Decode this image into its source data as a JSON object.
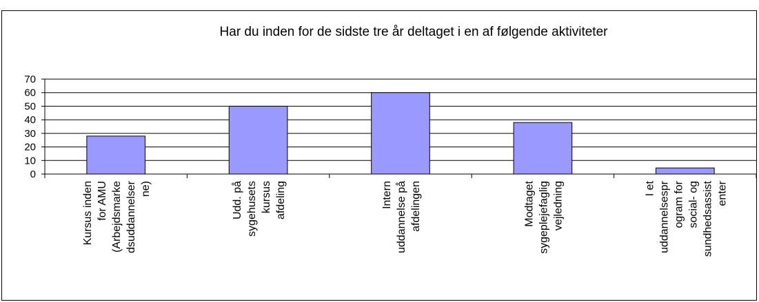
{
  "chart_data": {
    "type": "bar",
    "title": "Har du inden for de sidste tre år deltaget i en af følgende aktiviteter",
    "categories": [
      "Kursus inden\nfor AMU\n(Arbejdsmarke\ndsuddannelser\nne)",
      "Udd. på\nsygehusets\nkursus\nafdeling",
      "Intern\nuddannelse på\nafdelingen",
      "Modtaget\nsygeplejefaglig\nvejledning",
      "I et\nuddannelsespr\nogram for\nsocial- og\nsundhedsassist\nenter"
    ],
    "values": [
      28,
      50,
      60,
      38,
      4.5
    ],
    "color": "#9999ff",
    "ylim": [
      0,
      70
    ],
    "yticks": [
      0,
      10,
      20,
      30,
      40,
      50,
      60,
      70
    ],
    "grid": true
  }
}
